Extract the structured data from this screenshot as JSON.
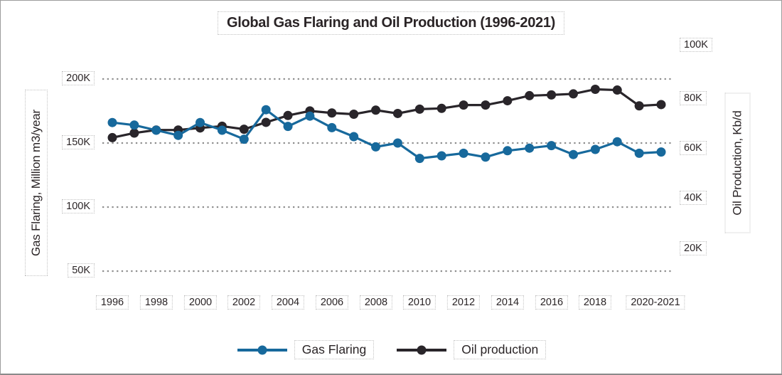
{
  "title": "Global Gas Flaring and Oil Production (1996-2021)",
  "axes": {
    "left": {
      "title": "Gas Flaring, Million m3/year",
      "ticks": [
        "200K",
        "150K",
        "100K",
        "50K"
      ]
    },
    "right": {
      "title": "Oil Production, Kb/d",
      "ticks": [
        "100K",
        "80K",
        "60K",
        "40K",
        "20K"
      ]
    },
    "x": {
      "ticks": [
        "1996",
        "1998",
        "2000",
        "2002",
        "2004",
        "2006",
        "2008",
        "2010",
        "2012",
        "2014",
        "2016",
        "2018",
        "2020-2021"
      ]
    }
  },
  "legend": {
    "gas_flaring": "Gas Flaring",
    "oil_production": "Oil production"
  },
  "colors": {
    "gas_flaring": "#17699c",
    "oil_production": "#29252a",
    "gridline": "#8f8f8f",
    "text": "#2a2426"
  },
  "chart_data": {
    "type": "line",
    "title": "Global Gas Flaring and Oil Production (1996-2021)",
    "x_years": [
      1996,
      1997,
      1998,
      1999,
      2000,
      2001,
      2002,
      2003,
      2004,
      2005,
      2006,
      2007,
      2008,
      2009,
      2010,
      2011,
      2012,
      2013,
      2014,
      2015,
      2016,
      2017,
      2018,
      2019,
      2020,
      2021
    ],
    "x_tick_labels": [
      "1996",
      "1998",
      "2000",
      "2002",
      "2004",
      "2006",
      "2008",
      "2010",
      "2012",
      "2014",
      "2016",
      "2018",
      "2020-2021"
    ],
    "left_axis": {
      "label": "Gas Flaring, Million m3/year",
      "unit": "thousand million m3/year",
      "tick_values_K": [
        200,
        150,
        100,
        50
      ],
      "gridlines": true
    },
    "right_axis": {
      "label": "Oil Production, Kb/d",
      "unit": "thousand barrels/day",
      "tick_values_K": [
        100,
        80,
        60,
        40,
        20
      ],
      "gridlines": false
    },
    "series": [
      {
        "name": "Gas Flaring",
        "axis": "left",
        "color": "#17699c",
        "marker": "circle",
        "values_K": [
          166,
          164,
          160,
          156,
          166,
          160,
          153,
          176,
          163,
          171,
          162,
          155,
          147,
          150,
          138,
          140,
          142,
          139,
          144,
          146,
          148,
          141,
          145,
          151,
          142,
          143
        ]
      },
      {
        "name": "Oil production",
        "axis": "right",
        "color": "#29252a",
        "marker": "circle",
        "values_K": [
          64.5,
          66.3,
          67.5,
          67.5,
          68.3,
          69,
          67.8,
          70.5,
          73.2,
          75,
          74.2,
          73.7,
          75.3,
          74,
          75.7,
          76,
          77.3,
          77.3,
          79,
          81,
          81.3,
          81.7,
          83.5,
          83.2,
          77,
          77.5
        ]
      }
    ],
    "legend_position": "bottom",
    "grid_style": "dotted"
  }
}
